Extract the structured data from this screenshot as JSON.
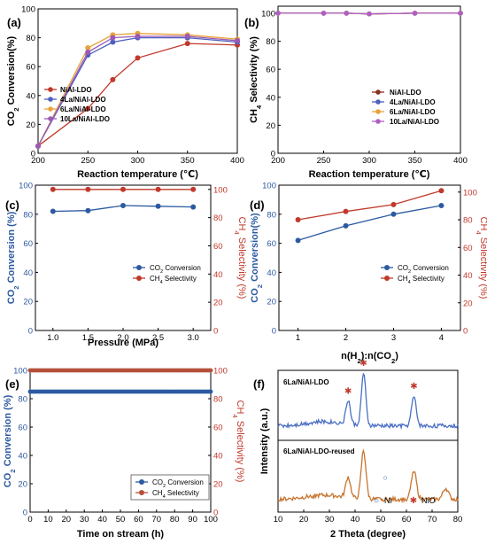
{
  "chart_data": [
    {
      "panel_label": "(a)",
      "type": "line",
      "xlabel": "Reaction temperature (℃)",
      "ylabel": "CO2 Conversion(%)",
      "ylabel_parts": [
        "CO",
        "2",
        " Conversion(%)"
      ],
      "xlim": [
        200,
        400
      ],
      "ylim": [
        0,
        100
      ],
      "xticks": [
        200,
        250,
        300,
        350,
        400
      ],
      "yticks": [
        0,
        20,
        40,
        60,
        80,
        100
      ],
      "legend_placement": "center-right",
      "series": [
        {
          "name": "NiAl-LDO",
          "color": "#c0392b",
          "x": [
            200,
            250,
            275,
            300,
            350,
            400
          ],
          "y": [
            5,
            31,
            51,
            66,
            76,
            75
          ]
        },
        {
          "name": "4La/NiAl-LDO",
          "color": "#4d5fbf",
          "x": [
            200,
            250,
            275,
            300,
            350,
            400
          ],
          "y": [
            5,
            68,
            77,
            80,
            80,
            77
          ]
        },
        {
          "name": "6La/NiAl-LDO",
          "color": "#e8a33c",
          "x": [
            200,
            250,
            275,
            300,
            350,
            400
          ],
          "y": [
            5,
            73,
            82,
            83,
            82,
            79
          ]
        },
        {
          "name": "10La/NiAl-LDO",
          "color": "#9b59b6",
          "x": [
            200,
            250,
            275,
            300,
            350,
            400
          ],
          "y": [
            5,
            70,
            80,
            81,
            81,
            78
          ]
        }
      ]
    },
    {
      "panel_label": "(b)",
      "type": "line",
      "xlabel": "Reaction temperature (℃)",
      "ylabel": "CH4 Selectivity (%)",
      "ylabel_parts": [
        "CH",
        "4",
        " Selectivity (%)"
      ],
      "xlim": [
        200,
        400
      ],
      "ylim": [
        0,
        105
      ],
      "xticks": [
        200,
        250,
        300,
        350,
        400
      ],
      "yticks": [
        0,
        20,
        40,
        60,
        80,
        100
      ],
      "legend_placement": "center-right",
      "series": [
        {
          "name": "NiAl-LDO",
          "color": "#8b2e1f",
          "x": [
            200,
            250,
            275,
            300,
            350,
            400
          ],
          "y": [
            100,
            100,
            100,
            99.5,
            100,
            100
          ]
        },
        {
          "name": "4La/NiAl-LDO",
          "color": "#4d5fbf",
          "x": [
            200,
            250,
            275,
            300,
            350,
            400
          ],
          "y": [
            100,
            100,
            100,
            99.5,
            100,
            100
          ]
        },
        {
          "name": "6La/NiAl-LDO",
          "color": "#e8a33c",
          "x": [
            200,
            250,
            275,
            300,
            350,
            400
          ],
          "y": [
            100,
            100,
            100,
            99.5,
            100,
            100
          ]
        },
        {
          "name": "10La/NiAl-LDO",
          "color": "#b05fc4",
          "x": [
            200,
            250,
            275,
            300,
            350,
            400
          ],
          "y": [
            100,
            100,
            100,
            99.5,
            100,
            100
          ]
        }
      ]
    },
    {
      "panel_label": "(c)",
      "type": "line",
      "xlabel": "Pressure (MPa)",
      "ylabel_left_parts": [
        "CO",
        "2",
        " Conversion (%)"
      ],
      "ylabel_right_parts": [
        "CH",
        "4",
        " Selectivity (%)"
      ],
      "xlim": [
        0.75,
        3.25
      ],
      "ylim": [
        0,
        100
      ],
      "ylim_right": [
        0,
        103
      ],
      "xticks": [
        "1.0",
        "1.5",
        "2.0",
        "2.5",
        "3.0"
      ],
      "yticks_left": [
        0,
        20,
        40,
        60,
        80,
        100
      ],
      "yticks_right": [
        0,
        20,
        40,
        60,
        80,
        100
      ],
      "legend_placement": "bottom-right",
      "series": [
        {
          "name_parts": [
            "CO",
            "2",
            " Conversion"
          ],
          "axis": "left",
          "color": "#2c5aa0",
          "x": [
            1.0,
            1.5,
            2.0,
            2.5,
            3.0
          ],
          "y": [
            82,
            82.5,
            86,
            85.5,
            85
          ]
        },
        {
          "name_parts": [
            "CH",
            "4",
            " Selectivity"
          ],
          "axis": "right",
          "color": "#c0392b",
          "x": [
            1.0,
            1.5,
            2.0,
            2.5,
            3.0
          ],
          "y": [
            100,
            100,
            100,
            100,
            100
          ]
        }
      ]
    },
    {
      "panel_label": "(d)",
      "type": "line",
      "xlabel_parts": [
        "n(H",
        "2",
        "):n(CO",
        "2",
        ")"
      ],
      "ylabel_left_parts": [
        "CO",
        "2",
        " Conversion(%)"
      ],
      "ylabel_right_parts": [
        "CH",
        "4",
        " Selectivity (%)"
      ],
      "xlim": [
        0.6,
        4.4
      ],
      "ylim": [
        0,
        100
      ],
      "ylim_right": [
        0,
        105
      ],
      "xticks": [
        1,
        2,
        3,
        4
      ],
      "yticks_left": [
        0,
        20,
        40,
        60,
        80,
        100
      ],
      "yticks_right": [
        0,
        20,
        40,
        60,
        80,
        100
      ],
      "legend_placement": "bottom-right",
      "series": [
        {
          "name_parts": [
            "CO",
            "2",
            " Conversion"
          ],
          "axis": "left",
          "color": "#2c5aa0",
          "x": [
            1,
            2,
            3,
            4
          ],
          "y": [
            62,
            72,
            80,
            86
          ]
        },
        {
          "name_parts": [
            "CH",
            "4",
            " Selectivity"
          ],
          "axis": "right",
          "color": "#c0392b",
          "x": [
            1,
            2,
            3,
            4
          ],
          "y": [
            80,
            86,
            91,
            101
          ]
        }
      ]
    },
    {
      "panel_label": "(e)",
      "type": "scatter",
      "xlabel": "Time on stream (h)",
      "ylabel_left_parts": [
        "CO",
        "2",
        " Conversion (%)"
      ],
      "ylabel_right_parts": [
        "CH",
        "4",
        " Selectivity (%)"
      ],
      "xlim": [
        0,
        100
      ],
      "ylim": [
        0,
        100
      ],
      "ylim_right": [
        0,
        100
      ],
      "xticks": [
        0,
        10,
        20,
        30,
        40,
        50,
        60,
        70,
        80,
        90,
        100
      ],
      "yticks_left": [
        0,
        20,
        40,
        60,
        80,
        100
      ],
      "yticks_right": [
        0,
        20,
        40,
        60,
        80,
        100
      ],
      "legend_placement": "bottom-right",
      "series": [
        {
          "name_parts": [
            "CO",
            "2",
            " Conversion"
          ],
          "axis": "left",
          "color": "#2c5aa0",
          "x_start": 0,
          "x_end": 100,
          "x_step": 1,
          "y": 85
        },
        {
          "name_parts": [
            "CH",
            "4",
            " Selectivity"
          ],
          "axis": "right",
          "color": "#b5503a",
          "x_start": 0,
          "x_end": 100,
          "x_step": 1,
          "y": 100
        }
      ]
    },
    {
      "panel_label": "(f)",
      "type": "line",
      "xlabel": "2 Theta (degree)",
      "ylabel": "Intensity (a.u.)",
      "xlim": [
        10,
        80
      ],
      "xticks": [
        10,
        20,
        30,
        40,
        50,
        60,
        70,
        80
      ],
      "legend_placement": "bottom-right",
      "legend": [
        {
          "symbol": "○",
          "label": "Ni",
          "color": "#3a62b5"
        },
        {
          "symbol": "✱",
          "label": "NiO",
          "color": "#c0392b"
        }
      ],
      "series": [
        {
          "name": "6La/NiAl-LDO",
          "color": "#4a6fc4",
          "peaks": [
            {
              "x": 37.3,
              "h": 0.35,
              "w": 1.2
            },
            {
              "x": 43.3,
              "h": 0.75,
              "w": 1.2
            },
            {
              "x": 62.9,
              "h": 0.42,
              "w": 1.3
            }
          ],
          "markers": [
            {
              "x": 37.3,
              "symbol": "✱"
            },
            {
              "x": 43.3,
              "symbol": "✱"
            },
            {
              "x": 62.9,
              "symbol": "✱"
            }
          ]
        },
        {
          "name": "6La/NiAl-LDO-reused",
          "color": "#c8742e",
          "peaks": [
            {
              "x": 37.3,
              "h": 0.3,
              "w": 1.3
            },
            {
              "x": 43.3,
              "h": 0.7,
              "w": 1.3
            },
            {
              "x": 62.9,
              "h": 0.42,
              "w": 1.4
            },
            {
              "x": 75.3,
              "h": 0.16,
              "w": 1.5
            }
          ],
          "markers": [
            {
              "x": 51.8,
              "symbol": "○"
            }
          ]
        }
      ]
    }
  ]
}
